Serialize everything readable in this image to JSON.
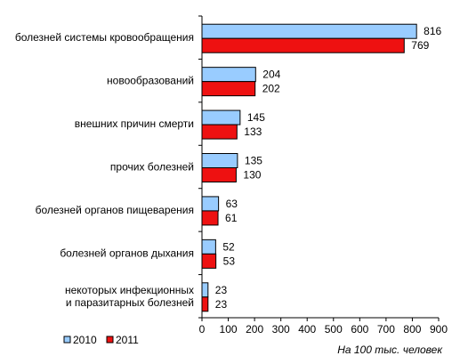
{
  "chart_data": {
    "type": "bar",
    "orientation": "horizontal",
    "categories": [
      "болезней системы кровообращения",
      "новообразований",
      "внешних причин смерти",
      "прочих болезней",
      "болезней органов пищеварения",
      "болезней органов дыхания",
      "некоторых инфекционных и паразитарных болезней"
    ],
    "series": [
      {
        "name": "2010",
        "color": "#99ccff",
        "values": [
          816,
          204,
          145,
          135,
          63,
          52,
          23
        ]
      },
      {
        "name": "2011",
        "color": "#ee1111",
        "values": [
          769,
          202,
          133,
          130,
          61,
          53,
          23
        ]
      }
    ],
    "xlim": [
      0,
      900
    ],
    "xticks": [
      0,
      100,
      200,
      300,
      400,
      500,
      600,
      700,
      800,
      900
    ],
    "unit_note": "На 100 тыс. человек",
    "legend_position": "bottom-left",
    "grid": false
  }
}
